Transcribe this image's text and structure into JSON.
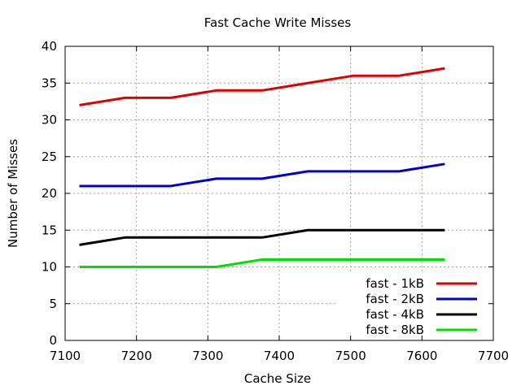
{
  "chart_data": {
    "type": "line",
    "title": "Fast Cache Write Misses",
    "xlabel": "Cache Size",
    "ylabel": "Number of Misses",
    "xlim": [
      7100,
      7700
    ],
    "ylim": [
      0,
      40
    ],
    "xticks": [
      7100,
      7200,
      7300,
      7400,
      7500,
      7600,
      7700
    ],
    "yticks": [
      0,
      5,
      10,
      15,
      20,
      25,
      30,
      35,
      40
    ],
    "grid": true,
    "legend_position": "bottom-right",
    "x": [
      7120,
      7184,
      7248,
      7312,
      7376,
      7440,
      7504,
      7568,
      7632
    ],
    "series": [
      {
        "name": "fast - 1kB",
        "color": "#e00000",
        "values": [
          32,
          33,
          33,
          34,
          34,
          35,
          36,
          36,
          37
        ]
      },
      {
        "name": "fast - 2kB",
        "color": "#0000d0",
        "values": [
          21,
          21,
          21,
          22,
          22,
          23,
          23,
          23,
          24
        ]
      },
      {
        "name": "fast - 4kB",
        "color": "#000000",
        "values": [
          13,
          14,
          14,
          14,
          14,
          15,
          15,
          15,
          15
        ]
      },
      {
        "name": "fast - 8kB",
        "color": "#00e000",
        "values": [
          10,
          10,
          10,
          10,
          11,
          11,
          11,
          11,
          11
        ]
      }
    ]
  }
}
